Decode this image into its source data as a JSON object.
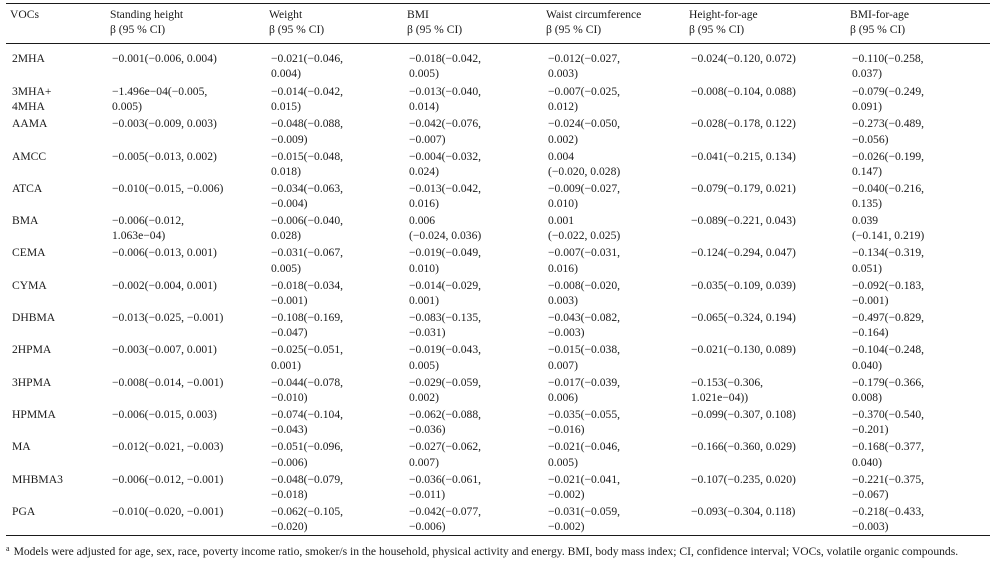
{
  "table": {
    "headers": [
      {
        "title": "VOCs",
        "sub": ""
      },
      {
        "title": "Standing height",
        "sub": "β (95 % CI)"
      },
      {
        "title": "Weight",
        "sub": "β (95 % CI)"
      },
      {
        "title": "BMI",
        "sub": "β (95 % CI)"
      },
      {
        "title": "Waist circumference",
        "sub": "β (95 % CI)"
      },
      {
        "title": "Height-for-age",
        "sub": "β (95 % CI)"
      },
      {
        "title": "BMI-for-age",
        "sub": "β (95 % CI)"
      }
    ],
    "rows": [
      {
        "voc": "2MHA",
        "cells": [
          [
            "−0.001(−0.006, 0.004)"
          ],
          [
            "−0.021(−0.046,",
            "0.004)"
          ],
          [
            "−0.018(−0.042,",
            "0.005)"
          ],
          [
            "−0.012(−0.027,",
            "0.003)"
          ],
          [
            "−0.024(−0.120, 0.072)"
          ],
          [
            "−0.110(−0.258,",
            "0.037)"
          ]
        ]
      },
      {
        "voc": "3MHA+\n4MHA",
        "cells": [
          [
            "−1.496e−04(−0.005,",
            "0.005)"
          ],
          [
            "−0.014(−0.042,",
            "0.015)"
          ],
          [
            "−0.013(−0.040,",
            "0.014)"
          ],
          [
            "−0.007(−0.025,",
            "0.012)"
          ],
          [
            "−0.008(−0.104, 0.088)"
          ],
          [
            "−0.079(−0.249,",
            "0.091)"
          ]
        ]
      },
      {
        "voc": "AAMA",
        "cells": [
          [
            "−0.003(−0.009, 0.003)"
          ],
          [
            "−0.048(−0.088,",
            "−0.009)"
          ],
          [
            "−0.042(−0.076,",
            "−0.007)"
          ],
          [
            "−0.024(−0.050,",
            "0.002)"
          ],
          [
            "−0.028(−0.178, 0.122)"
          ],
          [
            "−0.273(−0.489,",
            "−0.056)"
          ]
        ]
      },
      {
        "voc": "AMCC",
        "cells": [
          [
            "−0.005(−0.013, 0.002)"
          ],
          [
            "−0.015(−0.048,",
            "0.018)"
          ],
          [
            "−0.004(−0.032,",
            "0.024)"
          ],
          [
            "0.004",
            "(−0.020, 0.028)"
          ],
          [
            "−0.041(−0.215, 0.134)"
          ],
          [
            "−0.026(−0.199,",
            "0.147)"
          ]
        ]
      },
      {
        "voc": "ATCA",
        "cells": [
          [
            "−0.010(−0.015, −0.006)"
          ],
          [
            "−0.034(−0.063,",
            "−0.004)"
          ],
          [
            "−0.013(−0.042,",
            "0.016)"
          ],
          [
            "−0.009(−0.027,",
            "0.010)"
          ],
          [
            "−0.079(−0.179, 0.021)"
          ],
          [
            "−0.040(−0.216,",
            "0.135)"
          ]
        ]
      },
      {
        "voc": "BMA",
        "cells": [
          [
            "−0.006(−0.012,",
            "1.063e−04)"
          ],
          [
            "−0.006(−0.040,",
            "0.028)"
          ],
          [
            "0.006",
            "(−0.024, 0.036)"
          ],
          [
            "0.001",
            "(−0.022, 0.025)"
          ],
          [
            "−0.089(−0.221, 0.043)"
          ],
          [
            "0.039",
            "(−0.141, 0.219)"
          ]
        ]
      },
      {
        "voc": "CEMA",
        "cells": [
          [
            "−0.006(−0.013, 0.001)"
          ],
          [
            "−0.031(−0.067,",
            "0.005)"
          ],
          [
            "−0.019(−0.049,",
            "0.010)"
          ],
          [
            "−0.007(−0.031,",
            "0.016)"
          ],
          [
            "−0.124(−0.294, 0.047)"
          ],
          [
            "−0.134(−0.319,",
            "0.051)"
          ]
        ]
      },
      {
        "voc": "CYMA",
        "cells": [
          [
            "−0.002(−0.004, 0.001)"
          ],
          [
            "−0.018(−0.034,",
            "−0.001)"
          ],
          [
            "−0.014(−0.029,",
            "0.001)"
          ],
          [
            "−0.008(−0.020,",
            "0.003)"
          ],
          [
            "−0.035(−0.109, 0.039)"
          ],
          [
            "−0.092(−0.183,",
            "−0.001)"
          ]
        ]
      },
      {
        "voc": "DHBMA",
        "cells": [
          [
            "−0.013(−0.025, −0.001)"
          ],
          [
            "−0.108(−0.169,",
            "−0.047)"
          ],
          [
            "−0.083(−0.135,",
            "−0.031)"
          ],
          [
            "−0.043(−0.082,",
            "−0.003)"
          ],
          [
            "−0.065(−0.324, 0.194)"
          ],
          [
            "−0.497(−0.829,",
            "−0.164)"
          ]
        ]
      },
      {
        "voc": "2HPMA",
        "cells": [
          [
            "−0.003(−0.007, 0.001)"
          ],
          [
            "−0.025(−0.051,",
            "0.001)"
          ],
          [
            "−0.019(−0.043,",
            "0.005)"
          ],
          [
            "−0.015(−0.038,",
            "0.007)"
          ],
          [
            "−0.021(−0.130, 0.089)"
          ],
          [
            "−0.104(−0.248,",
            "0.040)"
          ]
        ]
      },
      {
        "voc": "3HPMA",
        "cells": [
          [
            "−0.008(−0.014, −0.001)"
          ],
          [
            "−0.044(−0.078,",
            "−0.010)"
          ],
          [
            "−0.029(−0.059,",
            "0.002)"
          ],
          [
            "−0.017(−0.039,",
            "0.006)"
          ],
          [
            "−0.153(−0.306,",
            "1.021e−04))"
          ],
          [
            "−0.179(−0.366,",
            "0.008)"
          ]
        ]
      },
      {
        "voc": "HPMMA",
        "cells": [
          [
            "−0.006(−0.015, 0.003)"
          ],
          [
            "−0.074(−0.104,",
            "−0.043)"
          ],
          [
            "−0.062(−0.088,",
            "−0.036)"
          ],
          [
            "−0.035(−0.055,",
            "−0.016)"
          ],
          [
            "−0.099(−0.307, 0.108)"
          ],
          [
            "−0.370(−0.540,",
            "−0.201)"
          ]
        ]
      },
      {
        "voc": "MA",
        "cells": [
          [
            "−0.012(−0.021, −0.003)"
          ],
          [
            "−0.051(−0.096,",
            "−0.006)"
          ],
          [
            "−0.027(−0.062,",
            "0.007)"
          ],
          [
            "−0.021(−0.046,",
            "0.005)"
          ],
          [
            "−0.166(−0.360, 0.029)"
          ],
          [
            "−0.168(−0.377,",
            "0.040)"
          ]
        ]
      },
      {
        "voc": "MHBMA3",
        "cells": [
          [
            "−0.006(−0.012, −0.001)"
          ],
          [
            "−0.048(−0.079,",
            "−0.018)"
          ],
          [
            "−0.036(−0.061,",
            "−0.011)"
          ],
          [
            "−0.021(−0.041,",
            "−0.002)"
          ],
          [
            "−0.107(−0.235, 0.020)"
          ],
          [
            "−0.221(−0.375,",
            "−0.067)"
          ]
        ]
      },
      {
        "voc": "PGA",
        "cells": [
          [
            "−0.010(−0.020, −0.001)"
          ],
          [
            "−0.062(−0.105,",
            "−0.020)"
          ],
          [
            "−0.042(−0.077,",
            "−0.006)"
          ],
          [
            "−0.031(−0.059,",
            "−0.002)"
          ],
          [
            "−0.093(−0.304, 0.118)"
          ],
          [
            "−0.218(−0.433,",
            "−0.003)"
          ]
        ]
      }
    ]
  },
  "footnote": {
    "marker": "a",
    "text": "Models were adjusted for age, sex, race, poverty income ratio, smoker/s in the household, physical activity and energy. BMI, body mass index; CI, confidence interval; VOCs, volatile organic compounds."
  }
}
